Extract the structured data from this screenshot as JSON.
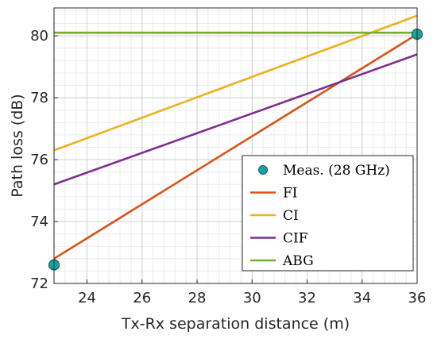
{
  "chart_data": {
    "type": "line",
    "xlabel": "Tx-Rx separation distance (m)",
    "ylabel": "Path loss (dB)",
    "xlim": [
      22.8,
      36.0
    ],
    "ylim": [
      72.0,
      80.9
    ],
    "xticks": [
      24,
      26,
      28,
      30,
      32,
      34,
      36
    ],
    "yticks": [
      72,
      74,
      76,
      78,
      80
    ],
    "grid": true,
    "minor_grid": true,
    "legend_placement": "bottom-right",
    "measurements": {
      "name": "Meas. (28 GHz)",
      "color": "#17a2a2",
      "points": [
        {
          "x": 22.8,
          "y": 72.6
        },
        {
          "x": 36.0,
          "y": 80.05
        }
      ]
    },
    "series": [
      {
        "name": "FI",
        "color": "#d95319",
        "x": [
          22.8,
          36.0
        ],
        "y": [
          72.8,
          80.05
        ]
      },
      {
        "name": "CI",
        "color": "#edb120",
        "x": [
          22.8,
          36.0
        ],
        "y": [
          76.3,
          80.65
        ]
      },
      {
        "name": "CIF",
        "color": "#7e2f8e",
        "x": [
          22.8,
          36.0
        ],
        "y": [
          75.2,
          79.4
        ]
      },
      {
        "name": "ABG",
        "color": "#77ac30",
        "x": [
          22.8,
          36.0
        ],
        "y": [
          80.1,
          80.1
        ]
      }
    ]
  }
}
